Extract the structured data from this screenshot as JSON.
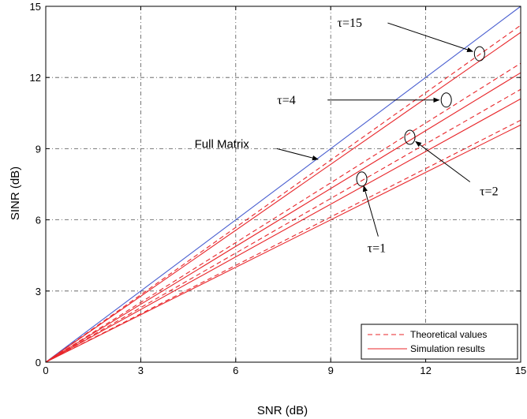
{
  "chart_data": {
    "type": "line",
    "title": "",
    "xlabel": "SNR (dB)",
    "ylabel": "SINR (dB)",
    "xlim": [
      0,
      15
    ],
    "ylim": [
      0,
      15
    ],
    "xticks": [
      0,
      3,
      6,
      9,
      12,
      15
    ],
    "yticks": [
      0,
      3,
      6,
      9,
      12,
      15
    ],
    "grid": true,
    "legend_position": "bottom-right",
    "colors": {
      "simulation": "#e8262a",
      "theoretical": "#e8262a",
      "full_matrix": "#4a5fd0"
    },
    "legend": [
      {
        "label": "Theoretical values",
        "style": "dashed"
      },
      {
        "label": "Simulation results",
        "style": "solid"
      }
    ],
    "series": [
      {
        "name": "Full Matrix",
        "kind": "reference",
        "style": "solid",
        "x": [
          0,
          15
        ],
        "y": [
          0,
          15
        ]
      },
      {
        "name": "Simulation results",
        "group": "τ=15",
        "style": "solid",
        "x": [
          0,
          15
        ],
        "y": [
          0,
          13.9
        ]
      },
      {
        "name": "Theoretical values",
        "group": "τ=15",
        "style": "dashed",
        "x": [
          0,
          15
        ],
        "y": [
          0,
          14.2
        ]
      },
      {
        "name": "Simulation results",
        "group": "τ=4",
        "style": "solid",
        "x": [
          0,
          15
        ],
        "y": [
          0,
          12.2
        ]
      },
      {
        "name": "Theoretical values",
        "group": "τ=4",
        "style": "dashed",
        "x": [
          0,
          15
        ],
        "y": [
          0,
          12.6
        ]
      },
      {
        "name": "Simulation results",
        "group": "τ=2",
        "style": "solid",
        "x": [
          0,
          15
        ],
        "y": [
          0,
          11.1
        ]
      },
      {
        "name": "Theoretical values",
        "group": "τ=2",
        "style": "dashed",
        "x": [
          0,
          15
        ],
        "y": [
          0,
          11.5
        ]
      },
      {
        "name": "Simulation results",
        "group": "τ=1",
        "style": "solid",
        "x": [
          0,
          15
        ],
        "y": [
          0,
          10.0
        ]
      },
      {
        "name": "Theoretical values",
        "group": "τ=1",
        "style": "dashed",
        "x": [
          0,
          15
        ],
        "y": [
          0,
          10.2
        ]
      }
    ],
    "annotations": [
      {
        "text": "τ=15",
        "ellipse": [
          13.7,
          13.0
        ],
        "arrow_from": [
          10.8,
          14.3
        ],
        "label_at": [
          9.6,
          14.3
        ]
      },
      {
        "text": "τ=4",
        "ellipse": [
          12.65,
          11.05
        ],
        "arrow_from": [
          8.9,
          11.05
        ],
        "label_at": [
          7.6,
          11.05
        ]
      },
      {
        "text": "τ=2",
        "ellipse": [
          11.5,
          9.48
        ],
        "arrow_from": [
          13.4,
          7.6
        ],
        "label_at": [
          14.0,
          7.2
        ]
      },
      {
        "text": "τ=1",
        "ellipse": [
          9.98,
          7.72
        ],
        "arrow_from": [
          10.5,
          5.3
        ],
        "label_at": [
          10.45,
          4.8
        ]
      },
      {
        "text": "Full Matrix",
        "arrow_from": [
          7.3,
          9.0
        ],
        "arrow_to": [
          8.6,
          8.55
        ],
        "label_at": [
          4.7,
          9.2
        ]
      }
    ]
  }
}
